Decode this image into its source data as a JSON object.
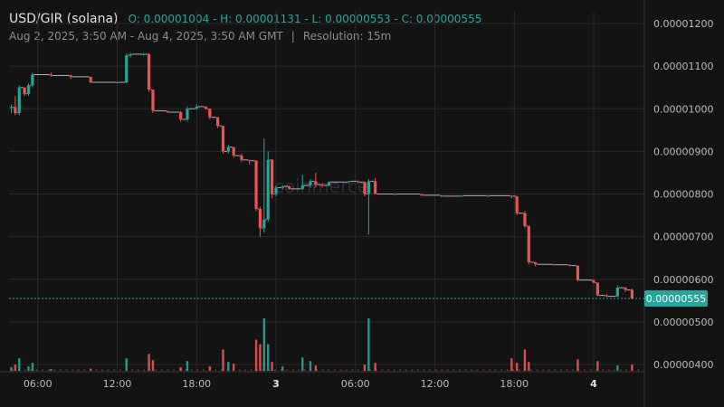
{
  "header": {
    "symbol": "USD/GIR (solana)",
    "ohlc": "O: 0.00001004 - H: 0.00001131 - L: 0.00000553 - C: 0.00000555",
    "range": "Aug 2, 2025, 3:50 AM - Aug 4, 2025, 3:50 AM GMT",
    "separator": "|",
    "resolution": "Resolution: 15m"
  },
  "watermark": "coinmerce",
  "colors": {
    "up": "#26a69a",
    "down": "#ef5350",
    "last_price": "#26a69a",
    "grid": "#2a2a2a"
  },
  "chart_data": {
    "type": "candlestick",
    "y_ticks": [
      "0.00001200",
      "0.00001100",
      "0.00001000",
      "0.00000900",
      "0.00000800",
      "0.00000700",
      "0.00000600",
      "0.00000500",
      "0.00000400"
    ],
    "ylim": [
      3.8e-06,
      1.22e-05
    ],
    "x_ticks": [
      {
        "label": "06:00",
        "hour": 6
      },
      {
        "label": "12:00",
        "hour": 12
      },
      {
        "label": "18:00",
        "hour": 18
      },
      {
        "label": "3",
        "hour": 24,
        "bold": true
      },
      {
        "label": "06:00",
        "hour": 30
      },
      {
        "label": "12:00",
        "hour": 36
      },
      {
        "label": "18:00",
        "hour": 42
      },
      {
        "label": "4",
        "hour": 48,
        "bold": true
      }
    ],
    "xlim_hours": [
      3.83,
      51.83
    ],
    "last_price": {
      "value": 5.55e-06,
      "label": "0.00000555"
    },
    "candles": [
      {
        "t": 4.0,
        "o": 1.004e-05,
        "h": 1.01e-05,
        "l": 9.9e-06,
        "c": 1.004e-05
      },
      {
        "t": 4.3,
        "o": 1.004e-05,
        "h": 1.03e-05,
        "l": 9.85e-06,
        "c": 9.9e-06
      },
      {
        "t": 4.6,
        "o": 9.9e-06,
        "h": 1.055e-05,
        "l": 9.85e-06,
        "c": 1.05e-05
      },
      {
        "t": 5.0,
        "o": 1.05e-05,
        "h": 1.05e-05,
        "l": 1.03e-05,
        "c": 1.035e-05
      },
      {
        "t": 5.3,
        "o": 1.035e-05,
        "h": 1.06e-05,
        "l": 1.03e-05,
        "c": 1.055e-05
      },
      {
        "t": 5.6,
        "o": 1.055e-05,
        "h": 1.085e-05,
        "l": 1.05e-05,
        "c": 1.08e-05
      },
      {
        "t": 7.0,
        "o": 1.08e-05,
        "h": 1.085e-05,
        "l": 1.075e-05,
        "c": 1.078e-05
      },
      {
        "t": 8.5,
        "o": 1.078e-05,
        "h": 1.08e-05,
        "l": 1.07e-05,
        "c": 1.075e-05
      },
      {
        "t": 10.0,
        "o": 1.075e-05,
        "h": 1.075e-05,
        "l": 1.06e-05,
        "c": 1.062e-05
      },
      {
        "t": 12.0,
        "o": 1.062e-05,
        "h": 1.065e-05,
        "l": 1.06e-05,
        "c": 1.062e-05
      },
      {
        "t": 12.7,
        "o": 1.062e-05,
        "h": 1.13e-05,
        "l": 1.06e-05,
        "c": 1.125e-05
      },
      {
        "t": 13.0,
        "o": 1.125e-05,
        "h": 1.131e-05,
        "l": 1.12e-05,
        "c": 1.128e-05
      },
      {
        "t": 14.0,
        "o": 1.128e-05,
        "h": 1.131e-05,
        "l": 1.125e-05,
        "c": 1.128e-05
      },
      {
        "t": 14.4,
        "o": 1.128e-05,
        "h": 1.13e-05,
        "l": 1.04e-05,
        "c": 1.045e-05
      },
      {
        "t": 14.7,
        "o": 1.045e-05,
        "h": 1.045e-05,
        "l": 9.9e-06,
        "c": 9.95e-06
      },
      {
        "t": 15.8,
        "o": 9.95e-06,
        "h": 9.95e-06,
        "l": 9.9e-06,
        "c": 9.92e-06
      },
      {
        "t": 16.8,
        "o": 9.92e-06,
        "h": 9.95e-06,
        "l": 9.7e-06,
        "c": 9.75e-06
      },
      {
        "t": 17.3,
        "o": 9.75e-06,
        "h": 1.005e-05,
        "l": 9.7e-06,
        "c": 1e-05
      },
      {
        "t": 18.0,
        "o": 1e-05,
        "h": 1.01e-05,
        "l": 9.98e-06,
        "c": 1.005e-05
      },
      {
        "t": 18.7,
        "o": 1.005e-05,
        "h": 1.005e-05,
        "l": 9.98e-06,
        "c": 1e-05
      },
      {
        "t": 19.0,
        "o": 1e-05,
        "h": 1e-05,
        "l": 9.75e-06,
        "c": 9.8e-06
      },
      {
        "t": 19.6,
        "o": 9.8e-06,
        "h": 9.8e-06,
        "l": 9.55e-06,
        "c": 9.6e-06
      },
      {
        "t": 20.0,
        "o": 9.6e-06,
        "h": 9.6e-06,
        "l": 8.95e-06,
        "c": 9e-06
      },
      {
        "t": 20.4,
        "o": 9e-06,
        "h": 9.15e-06,
        "l": 8.95e-06,
        "c": 9.1e-06
      },
      {
        "t": 20.8,
        "o": 9.1e-06,
        "h": 9.1e-06,
        "l": 8.85e-06,
        "c": 8.9e-06
      },
      {
        "t": 21.4,
        "o": 8.9e-06,
        "h": 8.95e-06,
        "l": 8.75e-06,
        "c": 8.8e-06
      },
      {
        "t": 22.0,
        "o": 8.8e-06,
        "h": 8.8e-06,
        "l": 8.7e-06,
        "c": 8.78e-06
      },
      {
        "t": 22.5,
        "o": 8.78e-06,
        "h": 8.8e-06,
        "l": 7.6e-06,
        "c": 7.65e-06
      },
      {
        "t": 22.8,
        "o": 7.65e-06,
        "h": 7.7e-06,
        "l": 7e-06,
        "c": 7.2e-06
      },
      {
        "t": 23.1,
        "o": 7.2e-06,
        "h": 9.3e-06,
        "l": 7.1e-06,
        "c": 7.4e-06
      },
      {
        "t": 23.4,
        "o": 7.4e-06,
        "h": 9e-06,
        "l": 7.35e-06,
        "c": 8.8e-06
      },
      {
        "t": 23.7,
        "o": 8.8e-06,
        "h": 8.82e-06,
        "l": 7.9e-06,
        "c": 8e-06
      },
      {
        "t": 24.0,
        "o": 8e-06,
        "h": 8.2e-06,
        "l": 7.95e-06,
        "c": 8.15e-06
      },
      {
        "t": 24.5,
        "o": 8.15e-06,
        "h": 8.2e-06,
        "l": 8.1e-06,
        "c": 8.18e-06
      },
      {
        "t": 25.0,
        "o": 8.18e-06,
        "h": 8.2e-06,
        "l": 8.1e-06,
        "c": 8.12e-06
      },
      {
        "t": 26.0,
        "o": 8.12e-06,
        "h": 8.45e-06,
        "l": 8.1e-06,
        "c": 8.2e-06
      },
      {
        "t": 26.6,
        "o": 8.2e-06,
        "h": 8.35e-06,
        "l": 8.15e-06,
        "c": 8.3e-06
      },
      {
        "t": 27.0,
        "o": 8.3e-06,
        "h": 8.5e-06,
        "l": 8.15e-06,
        "c": 8.22e-06
      },
      {
        "t": 27.5,
        "o": 8.22e-06,
        "h": 8.25e-06,
        "l": 8.15e-06,
        "c": 8.2e-06
      },
      {
        "t": 28.0,
        "o": 8.2e-06,
        "h": 8.3e-06,
        "l": 8.18e-06,
        "c": 8.28e-06
      },
      {
        "t": 29.5,
        "o": 8.28e-06,
        "h": 8.3e-06,
        "l": 8.25e-06,
        "c": 8.3e-06
      },
      {
        "t": 30.2,
        "o": 8.3e-06,
        "h": 8.32e-06,
        "l": 8.25e-06,
        "c": 8.28e-06
      },
      {
        "t": 30.7,
        "o": 8.28e-06,
        "h": 8.3e-06,
        "l": 7.95e-06,
        "c": 8e-06
      },
      {
        "t": 31.0,
        "o": 8e-06,
        "h": 8.35e-06,
        "l": 7.05e-06,
        "c": 8.3e-06
      },
      {
        "t": 31.5,
        "o": 8.3e-06,
        "h": 8.38e-06,
        "l": 8e-06,
        "c": 8e-06
      },
      {
        "t": 33.0,
        "o": 8e-06,
        "h": 8.02e-06,
        "l": 7.98e-06,
        "c": 8e-06
      },
      {
        "t": 35.0,
        "o": 8e-06,
        "h": 8e-06,
        "l": 7.95e-06,
        "c": 7.97e-06
      },
      {
        "t": 36.5,
        "o": 7.97e-06,
        "h": 7.97e-06,
        "l": 7.92e-06,
        "c": 7.95e-06
      },
      {
        "t": 38.0,
        "o": 7.95e-06,
        "h": 7.97e-06,
        "l": 7.93e-06,
        "c": 7.96e-06
      },
      {
        "t": 40.0,
        "o": 7.96e-06,
        "h": 7.98e-06,
        "l": 7.95e-06,
        "c": 7.96e-06
      },
      {
        "t": 41.8,
        "o": 7.96e-06,
        "h": 7.97e-06,
        "l": 7.9e-06,
        "c": 7.95e-06
      },
      {
        "t": 42.2,
        "o": 7.95e-06,
        "h": 7.95e-06,
        "l": 7.5e-06,
        "c": 7.55e-06
      },
      {
        "t": 42.8,
        "o": 7.55e-06,
        "h": 7.6e-06,
        "l": 7.2e-06,
        "c": 7.25e-06
      },
      {
        "t": 43.1,
        "o": 7.25e-06,
        "h": 7.25e-06,
        "l": 6.35e-06,
        "c": 6.4e-06
      },
      {
        "t": 43.6,
        "o": 6.4e-06,
        "h": 6.4e-06,
        "l": 6.3e-06,
        "c": 6.35e-06
      },
      {
        "t": 45.0,
        "o": 6.35e-06,
        "h": 6.36e-06,
        "l": 6.32e-06,
        "c": 6.34e-06
      },
      {
        "t": 46.2,
        "o": 6.34e-06,
        "h": 6.35e-06,
        "l": 6.3e-06,
        "c": 6.32e-06
      },
      {
        "t": 46.8,
        "o": 6.32e-06,
        "h": 6.32e-06,
        "l": 5.95e-06,
        "c": 5.98e-06
      },
      {
        "t": 48.0,
        "o": 5.98e-06,
        "h": 5.98e-06,
        "l": 5.9e-06,
        "c": 5.92e-06
      },
      {
        "t": 48.3,
        "o": 5.92e-06,
        "h": 5.92e-06,
        "l": 5.6e-06,
        "c": 5.62e-06
      },
      {
        "t": 49.0,
        "o": 5.62e-06,
        "h": 5.65e-06,
        "l": 5.58e-06,
        "c": 5.6e-06
      },
      {
        "t": 49.8,
        "o": 5.6e-06,
        "h": 5.85e-06,
        "l": 5.58e-06,
        "c": 5.8e-06
      },
      {
        "t": 50.4,
        "o": 5.8e-06,
        "h": 5.82e-06,
        "l": 5.7e-06,
        "c": 5.75e-06
      },
      {
        "t": 50.9,
        "o": 5.75e-06,
        "h": 5.78e-06,
        "l": 5.53e-06,
        "c": 5.55e-06
      }
    ],
    "volume": [
      {
        "t": 4.0,
        "v": 8,
        "up": true
      },
      {
        "t": 4.3,
        "v": 14,
        "up": false
      },
      {
        "t": 4.6,
        "v": 28,
        "up": true
      },
      {
        "t": 5.3,
        "v": 10,
        "up": true
      },
      {
        "t": 5.6,
        "v": 18,
        "up": true
      },
      {
        "t": 7.0,
        "v": 4,
        "up": true
      },
      {
        "t": 10.0,
        "v": 5,
        "up": false
      },
      {
        "t": 12.7,
        "v": 28,
        "up": true
      },
      {
        "t": 14.4,
        "v": 38,
        "up": false
      },
      {
        "t": 14.7,
        "v": 24,
        "up": false
      },
      {
        "t": 16.8,
        "v": 8,
        "up": false
      },
      {
        "t": 17.3,
        "v": 22,
        "up": true
      },
      {
        "t": 19.0,
        "v": 10,
        "up": false
      },
      {
        "t": 20.0,
        "v": 48,
        "up": false
      },
      {
        "t": 20.4,
        "v": 20,
        "up": true
      },
      {
        "t": 20.8,
        "v": 16,
        "up": false
      },
      {
        "t": 22.5,
        "v": 70,
        "up": false
      },
      {
        "t": 22.8,
        "v": 60,
        "up": false
      },
      {
        "t": 23.1,
        "v": 118,
        "up": true
      },
      {
        "t": 23.4,
        "v": 60,
        "up": true
      },
      {
        "t": 23.7,
        "v": 20,
        "up": false
      },
      {
        "t": 24.5,
        "v": 10,
        "up": true
      },
      {
        "t": 26.0,
        "v": 30,
        "up": true
      },
      {
        "t": 26.6,
        "v": 22,
        "up": true
      },
      {
        "t": 27.0,
        "v": 12,
        "up": false
      },
      {
        "t": 30.7,
        "v": 14,
        "up": false
      },
      {
        "t": 31.0,
        "v": 118,
        "up": true
      },
      {
        "t": 31.5,
        "v": 18,
        "up": false
      },
      {
        "t": 41.8,
        "v": 28,
        "up": false
      },
      {
        "t": 42.2,
        "v": 18,
        "up": false
      },
      {
        "t": 42.8,
        "v": 48,
        "up": false
      },
      {
        "t": 43.1,
        "v": 20,
        "up": false
      },
      {
        "t": 46.8,
        "v": 26,
        "up": false
      },
      {
        "t": 48.3,
        "v": 22,
        "up": false
      },
      {
        "t": 49.8,
        "v": 12,
        "up": true
      },
      {
        "t": 50.9,
        "v": 14,
        "up": false
      }
    ]
  }
}
